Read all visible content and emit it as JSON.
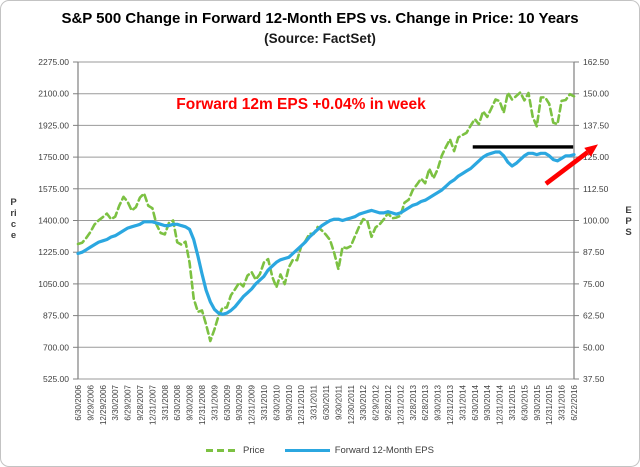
{
  "chart_data": {
    "type": "line",
    "title": "S&P 500 Change in Forward 12-Month EPS vs. Change in Price: 10 Years",
    "subtitle": "(Source: FactSet)",
    "legend_position": "bottom",
    "grid": "horizontal",
    "x_tick_labels": [
      "6/30/2006",
      "9/29/2006",
      "12/29/2006",
      "3/30/2007",
      "6/29/2007",
      "9/28/2007",
      "12/31/2007",
      "3/31/2008",
      "6/30/2008",
      "9/30/2008",
      "12/31/2008",
      "3/31/2009",
      "6/30/2009",
      "9/30/2009",
      "12/31/2009",
      "3/31/2010",
      "6/30/2010",
      "9/30/2010",
      "12/31/2010",
      "3/31/2011",
      "6/30/2011",
      "9/30/2011",
      "12/30/2011",
      "3/30/2012",
      "6/29/2012",
      "9/28/2012",
      "12/31/2012",
      "3/28/2013",
      "6/28/2013",
      "9/30/2013",
      "12/31/2013",
      "3/31/2014",
      "6/30/2014",
      "9/30/2014",
      "12/31/2014",
      "3/31/2015",
      "6/30/2015",
      "9/30/2015",
      "12/31/2015",
      "3/31/2016",
      "6/22/2016"
    ],
    "points_per_tick_interval": 3,
    "y_left": {
      "title": "Price",
      "min": 525,
      "max": 2275,
      "tick_labels": [
        "2275.00",
        "2100.00",
        "1925.00",
        "1750.00",
        "1575.00",
        "1400.00",
        "1225.00",
        "1050.00",
        "875.00",
        "700.00",
        "525.00"
      ]
    },
    "y_right": {
      "title": "EPS",
      "min": 37.5,
      "max": 162.5,
      "tick_labels": [
        "162.50",
        "150.00",
        "137.50",
        "125.00",
        "112.50",
        "100.00",
        "87.50",
        "75.00",
        "62.50",
        "50.00",
        "37.50"
      ]
    },
    "series": [
      {
        "name": "Price",
        "axis": "left",
        "color": "#7cc142",
        "line_style": "dashed",
        "values": [
          1270,
          1277,
          1304,
          1336,
          1378,
          1401,
          1418,
          1438,
          1407,
          1421,
          1482,
          1531,
          1503,
          1455,
          1474,
          1527,
          1549,
          1481,
          1468,
          1378,
          1331,
          1323,
          1386,
          1400,
          1280,
          1267,
          1283,
          1166,
          969,
          896,
          903,
          826,
          735,
          798,
          873,
          919,
          919,
          987,
          1021,
          1057,
          1036,
          1096,
          1115,
          1074,
          1104,
          1169,
          1187,
          1089,
          1031,
          1102,
          1049,
          1141,
          1183,
          1181,
          1258,
          1286,
          1327,
          1326,
          1364,
          1345,
          1321,
          1292,
          1219,
          1131,
          1253,
          1247,
          1258,
          1312,
          1366,
          1408,
          1398,
          1310,
          1362,
          1379,
          1407,
          1441,
          1412,
          1416,
          1426,
          1498,
          1515,
          1569,
          1598,
          1631,
          1606,
          1686,
          1633,
          1682,
          1757,
          1806,
          1848,
          1783,
          1859,
          1872,
          1884,
          1924,
          1960,
          1931,
          2003,
          1972,
          2018,
          2068,
          2059,
          1995,
          2105,
          2068,
          2086,
          2107,
          2063,
          2104,
          1972,
          1920,
          2079,
          2080,
          2044,
          1940,
          1932,
          2060,
          2065,
          2097,
          2085
        ]
      },
      {
        "name": "Forward 12-Month EPS",
        "axis": "right",
        "color": "#2ba7e0",
        "line_style": "solid",
        "values": [
          87,
          87.5,
          88.5,
          89.5,
          90.5,
          91.5,
          92,
          92.5,
          93.5,
          94,
          95,
          96,
          97,
          97.5,
          98,
          98.5,
          99.5,
          99.5,
          99.5,
          99,
          98.5,
          98,
          98,
          98.5,
          98.5,
          98,
          97.5,
          96.5,
          92.5,
          86,
          79,
          72.5,
          68,
          65,
          63.5,
          63,
          63.5,
          64.5,
          66,
          68,
          70,
          71.5,
          73,
          75,
          76.5,
          78,
          80.5,
          82,
          83.5,
          84.5,
          85,
          85.5,
          87,
          88.5,
          90,
          91.5,
          93.5,
          95,
          96.5,
          98,
          99,
          100,
          100.5,
          100.5,
          100,
          100.5,
          101,
          101.5,
          102.5,
          103,
          103.5,
          104,
          103.5,
          103,
          103,
          103.5,
          103,
          102.5,
          103,
          104,
          105,
          106,
          106.5,
          107.5,
          108,
          109,
          110,
          111,
          112,
          113.5,
          115,
          116,
          117.5,
          118.5,
          119.5,
          120.5,
          122,
          123.5,
          125,
          126,
          126.5,
          127,
          127,
          125.5,
          123,
          121.5,
          122.5,
          124,
          125.5,
          126.5,
          126.5,
          126,
          126.5,
          126.5,
          125.5,
          124,
          123.5,
          124.5,
          125.5,
          125.5,
          126
        ]
      }
    ],
    "annotations": {
      "callout": {
        "text": "Forward 12m EPS +0.04% in week",
        "color": "#ff0000"
      },
      "peak_line": {
        "color": "#000000",
        "axis": "right",
        "value": 129,
        "from_point": 95.5,
        "to_point": 119.8
      },
      "arrow": {
        "color": "#ff0000",
        "axis": "right",
        "from": {
          "point": 113.2,
          "value": 114.5
        },
        "to": {
          "point": 125.8,
          "value": 130
        }
      }
    }
  }
}
